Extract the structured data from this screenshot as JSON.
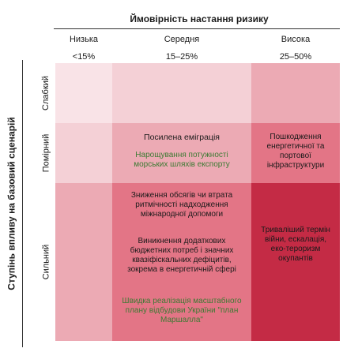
{
  "header": {
    "title": "Ймовірність настання ризику"
  },
  "columns": [
    {
      "name": "Низька",
      "range": "<15%"
    },
    {
      "name": "Середня",
      "range": "15–25%"
    },
    {
      "name": "Висока",
      "range": "25–50%"
    }
  ],
  "side": {
    "title": "Ступінь впливу на базовий сценарій"
  },
  "rows": [
    {
      "label": "Слабкий"
    },
    {
      "label": "Помірний"
    },
    {
      "label": "Сильний"
    }
  ],
  "cells": {
    "moderate_medium": {
      "item1": "Посилена еміграція",
      "item2": "Нарощування потужності морських шляхів експорту"
    },
    "moderate_high": {
      "item1": "Пошкодження енергетичної та портової інфраструктури"
    },
    "strong_medium": {
      "item1": "Зниження обсягів чи втрата ритмічності надходження міжнародної допомоги",
      "item2": "Виникнення додаткових бюджетних потреб і значних квазіфіскальних дефіцитів, зокрема в енергетичній сфері",
      "item3": "Швидка реалізація масштабного плану відбудови України \"план Маршалла\""
    },
    "strong_high": {
      "item1": "Триваліший термін війни, ескалація, еко-тероризм окупантів"
    }
  },
  "colors": {
    "pale": "#f8dde2",
    "light": "#f2c6cd",
    "medium": "#ea99a6",
    "strong": "#e06a7d",
    "dark": "#c92a44",
    "darkest": "#b9213a"
  }
}
